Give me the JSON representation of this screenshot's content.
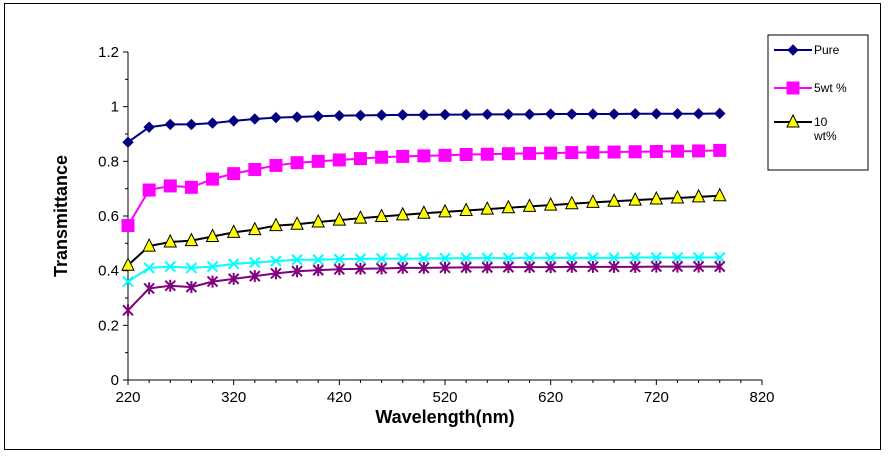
{
  "chart_data": {
    "type": "line",
    "title": "",
    "xlabel": "Wavelength(nm)",
    "ylabel": "Transmittance",
    "xlim": [
      220,
      820
    ],
    "ylim": [
      0,
      1.2
    ],
    "xticks": [
      "220",
      "320",
      "420",
      "520",
      "620",
      "720",
      "820"
    ],
    "yticks": [
      "0",
      "0.2",
      "0.4",
      "0.6",
      "0.8",
      "1",
      "1.2"
    ],
    "grid": false,
    "legend_position": "top-right",
    "x": [
      220,
      240,
      260,
      280,
      300,
      320,
      340,
      360,
      380,
      400,
      420,
      440,
      460,
      480,
      500,
      520,
      540,
      560,
      580,
      600,
      620,
      640,
      660,
      680,
      700,
      720,
      740,
      760,
      780
    ],
    "series": [
      {
        "name": "Pure",
        "color": "#000080",
        "marker": "diamond",
        "values": [
          0.87,
          0.925,
          0.935,
          0.935,
          0.94,
          0.948,
          0.955,
          0.96,
          0.962,
          0.965,
          0.967,
          0.968,
          0.969,
          0.97,
          0.97,
          0.971,
          0.971,
          0.972,
          0.972,
          0.972,
          0.973,
          0.973,
          0.973,
          0.973,
          0.974,
          0.974,
          0.974,
          0.974,
          0.975
        ]
      },
      {
        "name": "5wt %",
        "color": "#ff00ff",
        "marker": "square",
        "values": [
          0.565,
          0.695,
          0.71,
          0.705,
          0.735,
          0.755,
          0.77,
          0.785,
          0.795,
          0.8,
          0.805,
          0.81,
          0.815,
          0.818,
          0.82,
          0.822,
          0.825,
          0.826,
          0.828,
          0.829,
          0.83,
          0.832,
          0.833,
          0.834,
          0.835,
          0.836,
          0.837,
          0.838,
          0.84
        ]
      },
      {
        "name": "10 wt%",
        "color": "#000000",
        "marker": "triangle",
        "fill": "#ffff00",
        "values": [
          0.42,
          0.49,
          0.505,
          0.51,
          0.525,
          0.54,
          0.55,
          0.565,
          0.57,
          0.578,
          0.585,
          0.592,
          0.598,
          0.604,
          0.61,
          0.615,
          0.62,
          0.625,
          0.63,
          0.635,
          0.64,
          0.645,
          0.65,
          0.654,
          0.658,
          0.662,
          0.666,
          0.67,
          0.674
        ]
      },
      {
        "color": "#00ffff",
        "marker": "x",
        "values": [
          0.36,
          0.41,
          0.415,
          0.41,
          0.415,
          0.425,
          0.43,
          0.435,
          0.44,
          0.44,
          0.442,
          0.443,
          0.444,
          0.444,
          0.445,
          0.445,
          0.446,
          0.446,
          0.446,
          0.447,
          0.447,
          0.447,
          0.447,
          0.447,
          0.448,
          0.448,
          0.448,
          0.448,
          0.448
        ]
      },
      {
        "color": "#800080",
        "marker": "asterisk",
        "values": [
          0.255,
          0.335,
          0.345,
          0.34,
          0.36,
          0.37,
          0.38,
          0.39,
          0.398,
          0.402,
          0.405,
          0.407,
          0.408,
          0.41,
          0.41,
          0.411,
          0.412,
          0.412,
          0.413,
          0.413,
          0.413,
          0.414,
          0.414,
          0.414,
          0.414,
          0.415,
          0.415,
          0.415,
          0.415
        ]
      }
    ]
  },
  "legend": {
    "items": [
      {
        "lines": [
          "Pure"
        ]
      },
      {
        "lines": [
          "5wt %"
        ]
      },
      {
        "lines": [
          "10",
          "wt%"
        ]
      }
    ]
  }
}
